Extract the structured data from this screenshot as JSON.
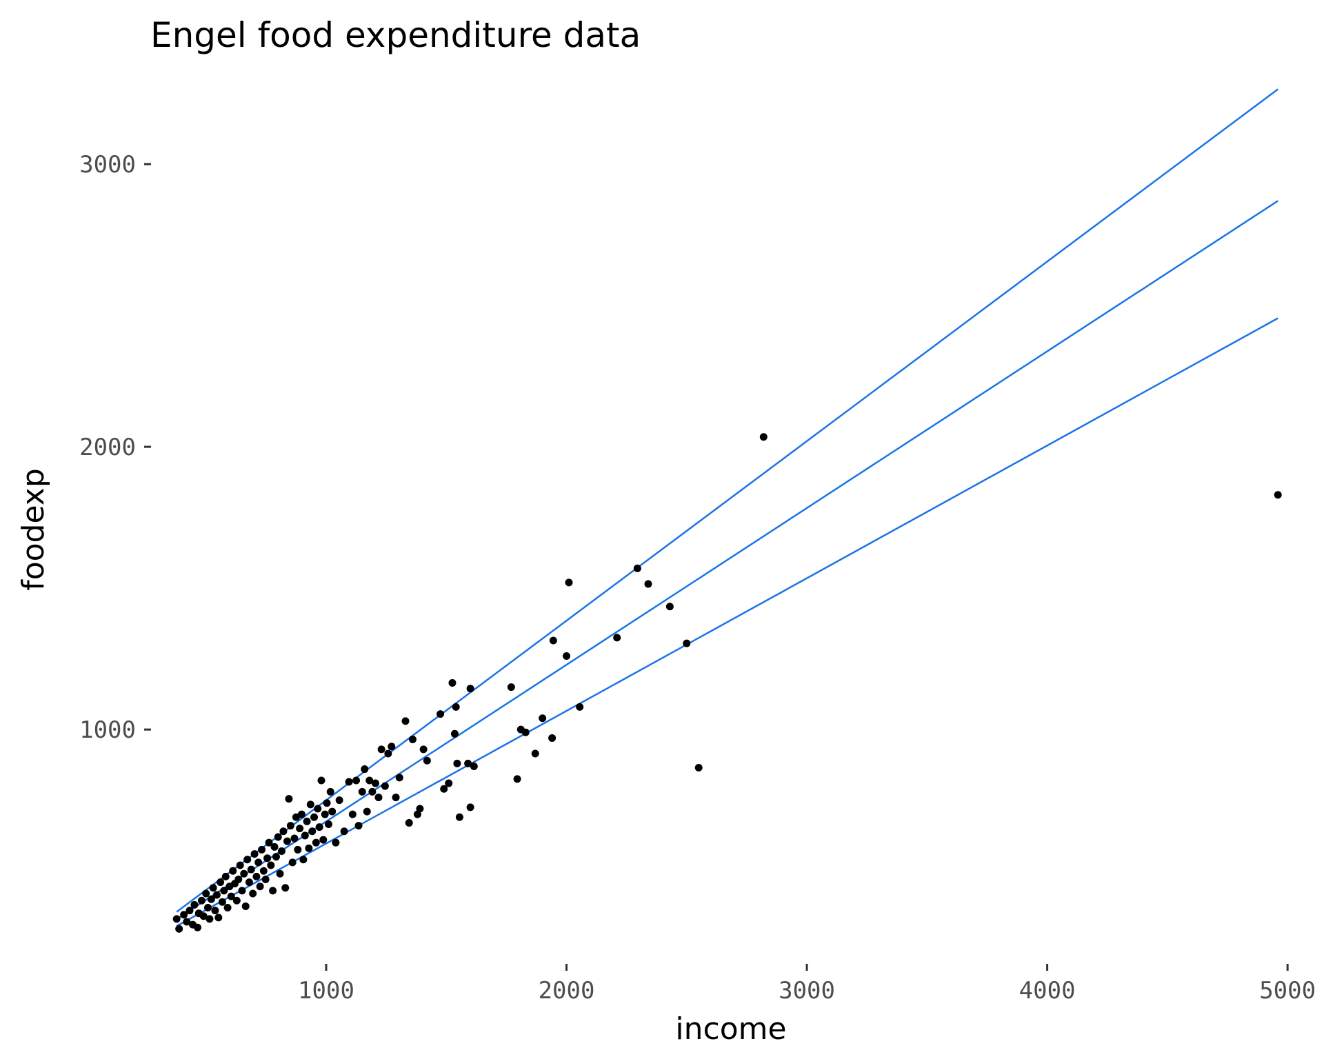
{
  "chart_data": {
    "type": "scatter",
    "title": "Engel food expenditure data",
    "xlabel": "income",
    "ylabel": "foodexp",
    "xlim": [
      300,
      5100
    ],
    "ylim": [
      220,
      3300
    ],
    "xticks": [
      1000,
      2000,
      3000,
      4000,
      5000
    ],
    "yticks": [
      1000,
      2000,
      3000
    ],
    "grid": false,
    "legend": "none",
    "point_color": "#000000",
    "line_color": "#1a73e8",
    "points": [
      [
        378,
        330
      ],
      [
        388,
        295
      ],
      [
        408,
        345
      ],
      [
        420,
        320
      ],
      [
        432,
        360
      ],
      [
        445,
        310
      ],
      [
        452,
        380
      ],
      [
        465,
        300
      ],
      [
        470,
        350
      ],
      [
        482,
        395
      ],
      [
        490,
        340
      ],
      [
        500,
        420
      ],
      [
        508,
        370
      ],
      [
        515,
        330
      ],
      [
        522,
        400
      ],
      [
        530,
        440
      ],
      [
        538,
        360
      ],
      [
        545,
        415
      ],
      [
        552,
        335
      ],
      [
        560,
        460
      ],
      [
        568,
        390
      ],
      [
        575,
        430
      ],
      [
        582,
        480
      ],
      [
        590,
        370
      ],
      [
        598,
        445
      ],
      [
        605,
        410
      ],
      [
        612,
        500
      ],
      [
        620,
        455
      ],
      [
        628,
        395
      ],
      [
        635,
        470
      ],
      [
        642,
        520
      ],
      [
        650,
        430
      ],
      [
        658,
        490
      ],
      [
        665,
        375
      ],
      [
        672,
        540
      ],
      [
        680,
        460
      ],
      [
        688,
        505
      ],
      [
        695,
        420
      ],
      [
        702,
        560
      ],
      [
        710,
        480
      ],
      [
        718,
        530
      ],
      [
        725,
        445
      ],
      [
        732,
        575
      ],
      [
        740,
        500
      ],
      [
        748,
        470
      ],
      [
        755,
        545
      ],
      [
        762,
        600
      ],
      [
        770,
        520
      ],
      [
        778,
        430
      ],
      [
        785,
        585
      ],
      [
        792,
        550
      ],
      [
        800,
        620
      ],
      [
        808,
        490
      ],
      [
        815,
        570
      ],
      [
        822,
        640
      ],
      [
        830,
        440
      ],
      [
        838,
        605
      ],
      [
        845,
        755
      ],
      [
        852,
        660
      ],
      [
        860,
        530
      ],
      [
        868,
        615
      ],
      [
        875,
        690
      ],
      [
        882,
        575
      ],
      [
        890,
        650
      ],
      [
        898,
        700
      ],
      [
        905,
        540
      ],
      [
        912,
        625
      ],
      [
        920,
        675
      ],
      [
        928,
        580
      ],
      [
        935,
        735
      ],
      [
        942,
        640
      ],
      [
        950,
        690
      ],
      [
        958,
        600
      ],
      [
        965,
        720
      ],
      [
        972,
        655
      ],
      [
        980,
        820
      ],
      [
        988,
        610
      ],
      [
        995,
        700
      ],
      [
        1003,
        740
      ],
      [
        1010,
        665
      ],
      [
        1018,
        780
      ],
      [
        1025,
        710
      ],
      [
        1040,
        600
      ],
      [
        1055,
        750
      ],
      [
        1075,
        640
      ],
      [
        1095,
        815
      ],
      [
        1110,
        700
      ],
      [
        1125,
        820
      ],
      [
        1135,
        660
      ],
      [
        1150,
        780
      ],
      [
        1160,
        860
      ],
      [
        1170,
        710
      ],
      [
        1180,
        820
      ],
      [
        1192,
        780
      ],
      [
        1205,
        810
      ],
      [
        1218,
        760
      ],
      [
        1230,
        930
      ],
      [
        1245,
        800
      ],
      [
        1258,
        915
      ],
      [
        1272,
        940
      ],
      [
        1290,
        760
      ],
      [
        1305,
        830
      ],
      [
        1330,
        1030
      ],
      [
        1345,
        670
      ],
      [
        1360,
        965
      ],
      [
        1380,
        700
      ],
      [
        1390,
        720
      ],
      [
        1405,
        930
      ],
      [
        1420,
        890
      ],
      [
        1475,
        1055
      ],
      [
        1490,
        790
      ],
      [
        1510,
        810
      ],
      [
        1525,
        1165
      ],
      [
        1535,
        985
      ],
      [
        1540,
        1080
      ],
      [
        1545,
        880
      ],
      [
        1555,
        690
      ],
      [
        1590,
        880
      ],
      [
        1600,
        1145
      ],
      [
        1600,
        725
      ],
      [
        1615,
        870
      ],
      [
        1770,
        1150
      ],
      [
        1795,
        825
      ],
      [
        1810,
        1000
      ],
      [
        1830,
        990
      ],
      [
        1870,
        915
      ],
      [
        1900,
        1040
      ],
      [
        1940,
        970
      ],
      [
        1945,
        1315
      ],
      [
        2000,
        1260
      ],
      [
        2010,
        1520
      ],
      [
        2055,
        1080
      ],
      [
        2210,
        1325
      ],
      [
        2295,
        1570
      ],
      [
        2340,
        1515
      ],
      [
        2430,
        1435
      ],
      [
        2500,
        1305
      ],
      [
        2550,
        865
      ],
      [
        2820,
        2035
      ],
      [
        4960,
        1830
      ]
    ],
    "series": [
      {
        "values": [
          [
            378,
            355
          ],
          [
            4960,
            3265
          ]
        ]
      },
      {
        "values": [
          [
            378,
            330
          ],
          [
            4960,
            2870
          ]
        ]
      },
      {
        "values": [
          [
            378,
            305
          ],
          [
            4960,
            2455
          ]
        ]
      }
    ]
  }
}
